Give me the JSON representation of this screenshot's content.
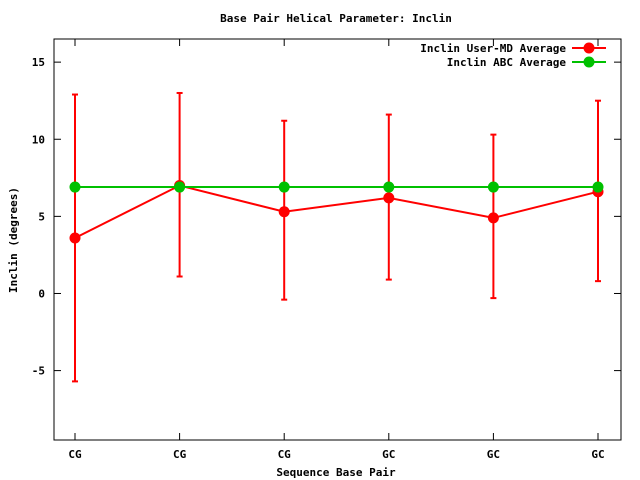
{
  "chart_data": {
    "type": "line",
    "title": "Base Pair Helical Parameter: Inclin",
    "xlabel": "Sequence Base Pair",
    "ylabel": "Inclin (degrees)",
    "categories": [
      "CG",
      "CG",
      "CG",
      "GC",
      "GC",
      "GC"
    ],
    "ylim": [
      -9.5,
      16.5
    ],
    "yticks": [
      -5,
      0,
      5,
      10,
      15
    ],
    "legend_position": "top-right",
    "grid": false,
    "series": [
      {
        "name": "Inclin User-MD Average",
        "color": "#ff0000",
        "values": [
          3.6,
          7.0,
          5.3,
          6.2,
          4.9,
          6.6
        ],
        "error_low": [
          -5.7,
          1.1,
          -0.4,
          0.9,
          -0.3,
          0.8
        ],
        "error_high": [
          12.9,
          13.0,
          11.2,
          11.6,
          10.3,
          12.5
        ]
      },
      {
        "name": "Inclin ABC Average",
        "color": "#00c000",
        "values": [
          6.9,
          6.9,
          6.9,
          6.9,
          6.9,
          6.9
        ]
      }
    ]
  }
}
